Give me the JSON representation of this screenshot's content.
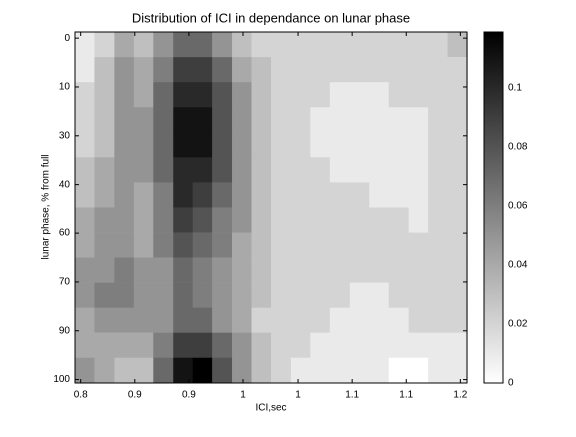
{
  "chart_data": {
    "type": "heatmap",
    "title": "Distribution of ICI in dependance on lunar phase",
    "x_label": "ICI,sec",
    "y_label": "lunar phase, % from full",
    "x": [
      0.804,
      0.825,
      0.846,
      0.866,
      0.887,
      0.908,
      0.928,
      0.949,
      0.97,
      0.99,
      1.011,
      1.032,
      1.052,
      1.073,
      1.094,
      1.114,
      1.135,
      1.156,
      1.176,
      1.197
    ],
    "y": [
      1.9,
      9.2,
      16.6,
      23.9,
      31.2,
      38.6,
      45.9,
      53.3,
      60.6,
      67.9,
      75.3,
      82.6,
      89.9,
      97.3
    ],
    "values": [
      [
        0.01,
        0.02,
        0.04,
        0.03,
        0.05,
        0.07,
        0.07,
        0.05,
        0.03,
        0.02,
        0.02,
        0.02,
        0.02,
        0.02,
        0.02,
        0.02,
        0.02,
        0.02,
        0.02,
        0.03
      ],
      [
        0.01,
        0.03,
        0.05,
        0.04,
        0.06,
        0.09,
        0.09,
        0.07,
        0.04,
        0.03,
        0.02,
        0.02,
        0.02,
        0.02,
        0.02,
        0.02,
        0.02,
        0.02,
        0.02,
        0.02
      ],
      [
        0.02,
        0.03,
        0.05,
        0.04,
        0.07,
        0.1,
        0.1,
        0.08,
        0.05,
        0.03,
        0.02,
        0.02,
        0.02,
        0.01,
        0.01,
        0.01,
        0.02,
        0.02,
        0.02,
        0.02
      ],
      [
        0.02,
        0.03,
        0.05,
        0.05,
        0.07,
        0.11,
        0.11,
        0.08,
        0.05,
        0.03,
        0.02,
        0.02,
        0.01,
        0.01,
        0.01,
        0.01,
        0.01,
        0.01,
        0.02,
        0.02
      ],
      [
        0.02,
        0.03,
        0.05,
        0.05,
        0.07,
        0.11,
        0.11,
        0.08,
        0.05,
        0.03,
        0.02,
        0.02,
        0.01,
        0.01,
        0.01,
        0.01,
        0.01,
        0.01,
        0.02,
        0.02
      ],
      [
        0.03,
        0.04,
        0.05,
        0.05,
        0.07,
        0.1,
        0.1,
        0.08,
        0.05,
        0.03,
        0.02,
        0.02,
        0.02,
        0.01,
        0.01,
        0.01,
        0.01,
        0.01,
        0.02,
        0.02
      ],
      [
        0.03,
        0.04,
        0.05,
        0.04,
        0.06,
        0.1,
        0.09,
        0.07,
        0.05,
        0.03,
        0.02,
        0.02,
        0.02,
        0.02,
        0.02,
        0.01,
        0.01,
        0.01,
        0.02,
        0.02
      ],
      [
        0.04,
        0.05,
        0.05,
        0.04,
        0.06,
        0.09,
        0.08,
        0.06,
        0.05,
        0.03,
        0.02,
        0.02,
        0.02,
        0.02,
        0.02,
        0.02,
        0.02,
        0.01,
        0.02,
        0.02
      ],
      [
        0.04,
        0.05,
        0.05,
        0.04,
        0.06,
        0.08,
        0.07,
        0.06,
        0.04,
        0.03,
        0.02,
        0.02,
        0.02,
        0.02,
        0.02,
        0.02,
        0.02,
        0.02,
        0.02,
        0.02
      ],
      [
        0.05,
        0.05,
        0.06,
        0.05,
        0.05,
        0.07,
        0.06,
        0.05,
        0.04,
        0.03,
        0.02,
        0.02,
        0.02,
        0.02,
        0.02,
        0.02,
        0.02,
        0.02,
        0.02,
        0.02
      ],
      [
        0.05,
        0.06,
        0.06,
        0.05,
        0.05,
        0.07,
        0.06,
        0.05,
        0.04,
        0.03,
        0.02,
        0.02,
        0.02,
        0.02,
        0.01,
        0.01,
        0.02,
        0.02,
        0.02,
        0.02
      ],
      [
        0.04,
        0.05,
        0.05,
        0.05,
        0.05,
        0.07,
        0.07,
        0.05,
        0.04,
        0.02,
        0.02,
        0.02,
        0.02,
        0.01,
        0.01,
        0.01,
        0.01,
        0.02,
        0.02,
        0.02
      ],
      [
        0.04,
        0.04,
        0.04,
        0.04,
        0.06,
        0.09,
        0.09,
        0.07,
        0.05,
        0.03,
        0.02,
        0.02,
        0.01,
        0.01,
        0.01,
        0.01,
        0.01,
        0.01,
        0.01,
        0.01
      ],
      [
        0.05,
        0.04,
        0.03,
        0.03,
        0.07,
        0.11,
        0.12,
        0.08,
        0.05,
        0.03,
        0.02,
        0.01,
        0.01,
        0.01,
        0.01,
        0.01,
        0.0,
        0.0,
        0.01,
        0.01
      ]
    ],
    "xlim": [
      0.794,
      1.207
    ],
    "xticks": [
      {
        "value": 0.8,
        "label": "0.8"
      },
      {
        "value": 0.857,
        "label": "0.9"
      },
      {
        "value": 0.914,
        "label": "0.9"
      },
      {
        "value": 0.971,
        "label": "1"
      },
      {
        "value": 1.029,
        "label": "1"
      },
      {
        "value": 1.086,
        "label": "1.1"
      },
      {
        "value": 1.143,
        "label": "1.1"
      },
      1.2
    ],
    "ylim": [
      -1.8,
      101
    ],
    "y_reversed": true,
    "yticks": [
      0,
      {
        "value": 14.3,
        "label": "10"
      },
      {
        "value": 28.6,
        "label": "30"
      },
      {
        "value": 42.9,
        "label": "40"
      },
      {
        "value": 57.1,
        "label": "60"
      },
      {
        "value": 71.4,
        "label": "70"
      },
      {
        "value": 85.7,
        "label": "90"
      },
      100
    ],
    "colormap": "gray",
    "colorbar": {
      "lim": [
        0,
        0.119
      ],
      "ticks": [
        0,
        0.02,
        0.04,
        0.06,
        0.08,
        0.1
      ]
    }
  }
}
